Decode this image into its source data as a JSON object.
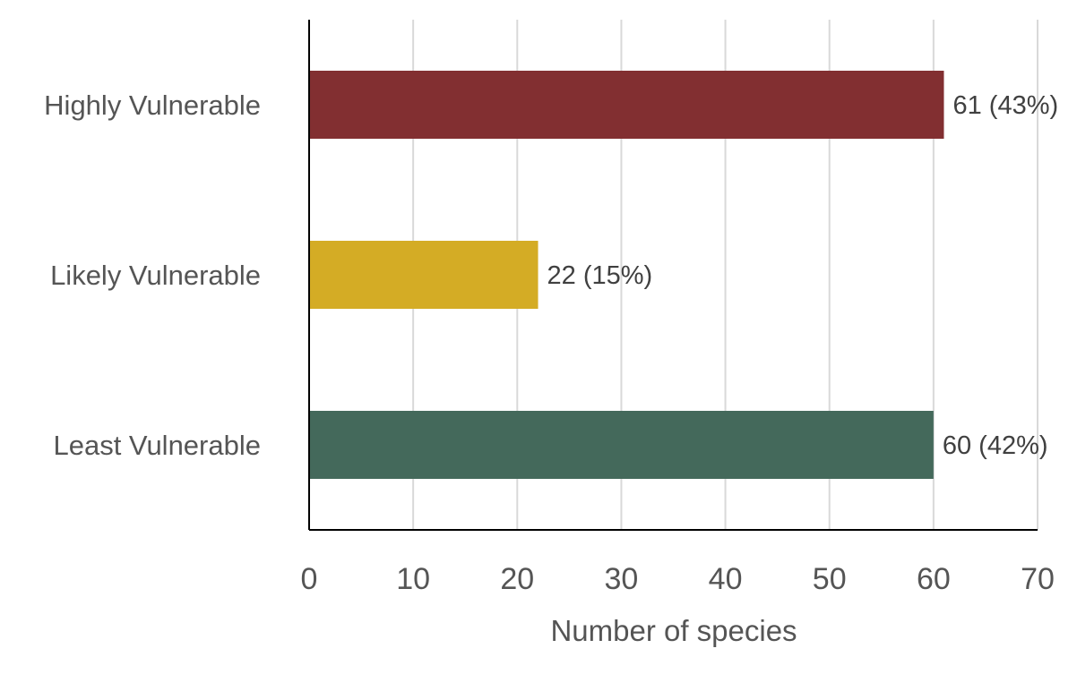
{
  "chart_data": {
    "type": "bar",
    "orientation": "horizontal",
    "categories": [
      "Highly Vulnerable",
      "Likely Vulnerable",
      "Least Vulnerable"
    ],
    "values": [
      61,
      22,
      60
    ],
    "data_labels": [
      "61 (43%)",
      "22 (15%)",
      "60 (42%)"
    ],
    "colors": [
      "#822f31",
      "#d4ac25",
      "#44695b"
    ],
    "xlabel": "Number of species",
    "ylabel": "",
    "xlim": [
      0,
      70
    ],
    "xticks": [
      "0",
      "10",
      "20",
      "30",
      "40",
      "50",
      "60",
      "70"
    ],
    "grid": true,
    "legend": "none"
  }
}
